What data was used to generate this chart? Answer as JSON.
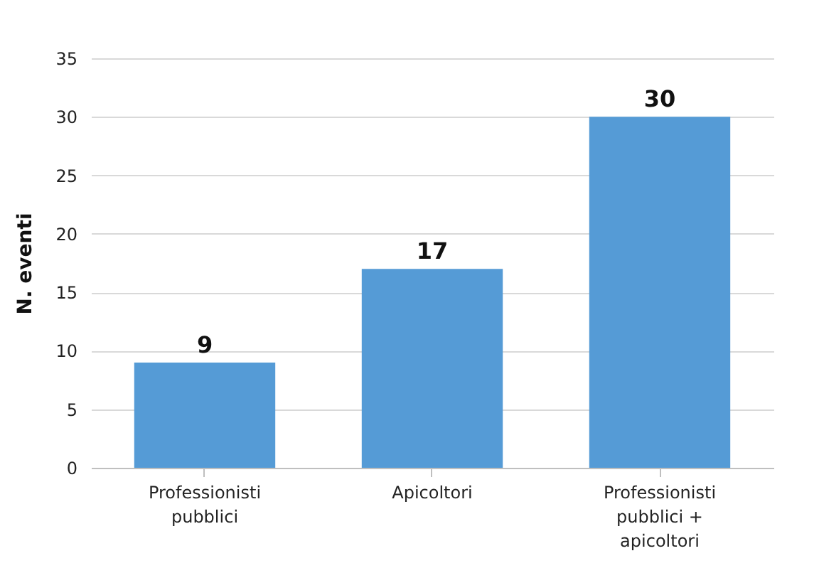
{
  "chart_data": {
    "type": "bar",
    "ylabel": "N. eventi",
    "categories": [
      "Professionisti pubblici",
      "Apicoltori",
      "Professionisti pubblici + apicoltori"
    ],
    "values": [
      9,
      17,
      30
    ],
    "color": "#559bd6",
    "ylim": [
      0,
      35
    ],
    "yticks": [
      0,
      5,
      10,
      15,
      20,
      25,
      30,
      35
    ],
    "grid": "y",
    "data_labels": true
  }
}
